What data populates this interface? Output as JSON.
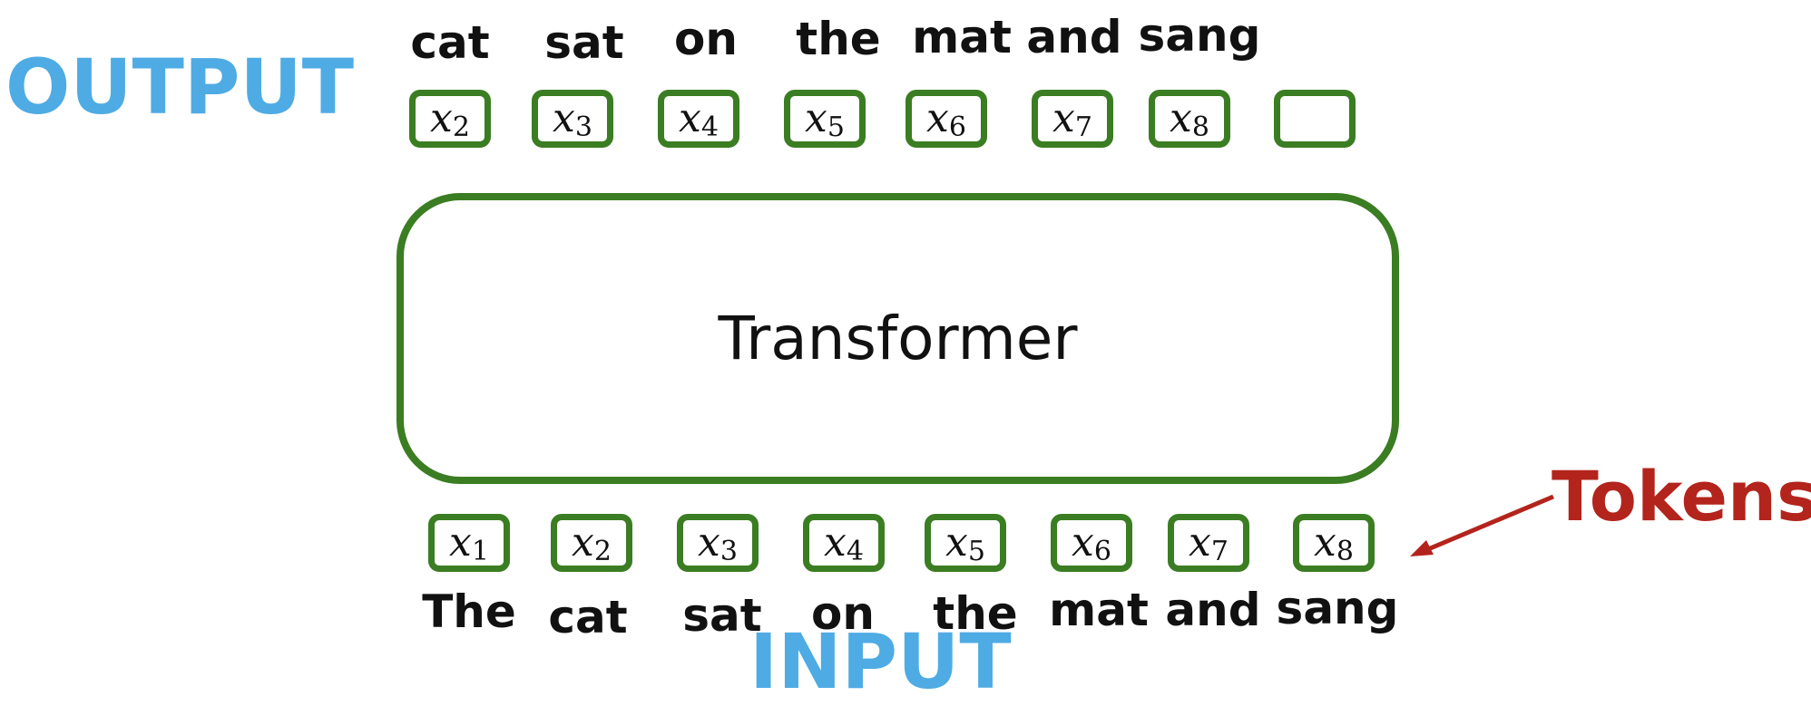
{
  "labels": {
    "output": "OUTPUT",
    "input": "INPUT",
    "transformer": "Transformer",
    "tokens": "Tokens"
  },
  "output": {
    "words": [
      "cat",
      "sat",
      "on",
      "the",
      "mat",
      "and",
      "sang"
    ],
    "tokens": [
      {
        "symbol": "x",
        "index": "2"
      },
      {
        "symbol": "x",
        "index": "3"
      },
      {
        "symbol": "x",
        "index": "4"
      },
      {
        "symbol": "x",
        "index": "5"
      },
      {
        "symbol": "x",
        "index": "6"
      },
      {
        "symbol": "x",
        "index": "7"
      },
      {
        "symbol": "x",
        "index": "8"
      },
      {
        "symbol": "",
        "index": ""
      }
    ]
  },
  "input": {
    "words": [
      "The",
      "cat",
      "sat",
      "on",
      "the",
      "mat",
      "and",
      "sang"
    ],
    "tokens": [
      {
        "symbol": "x",
        "index": "1"
      },
      {
        "symbol": "x",
        "index": "2"
      },
      {
        "symbol": "x",
        "index": "3"
      },
      {
        "symbol": "x",
        "index": "4"
      },
      {
        "symbol": "x",
        "index": "5"
      },
      {
        "symbol": "x",
        "index": "6"
      },
      {
        "symbol": "x",
        "index": "7"
      },
      {
        "symbol": "x",
        "index": "8"
      }
    ]
  },
  "colors": {
    "section_label": "#4eabe4",
    "token_border": "#3b7d22",
    "tokens_annotation": "#b3241c"
  }
}
